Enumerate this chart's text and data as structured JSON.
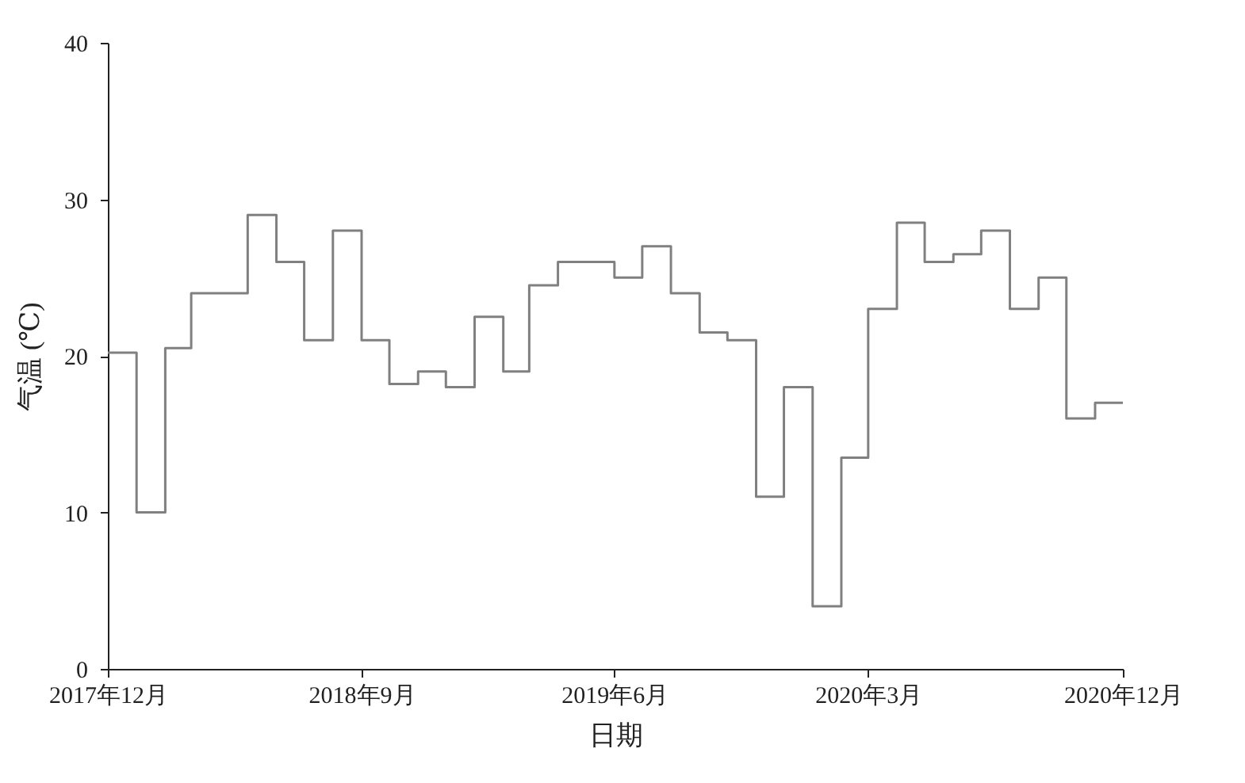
{
  "chart_data": {
    "type": "step",
    "xlabel": "日期",
    "ylabel": "气温 (℃)",
    "x": [
      "2017-12",
      "2018-01",
      "2018-02",
      "2018-03",
      "2018-04",
      "2018-05",
      "2018-06",
      "2018-07",
      "2018-08",
      "2018-09",
      "2018-10",
      "2018-11",
      "2018-12",
      "2019-01",
      "2019-02",
      "2019-03",
      "2019-04",
      "2019-05",
      "2019-06",
      "2019-07",
      "2019-08",
      "2019-09",
      "2019-10",
      "2019-11",
      "2019-12",
      "2020-01",
      "2020-02",
      "2020-03",
      "2020-04",
      "2020-05",
      "2020-06",
      "2020-07",
      "2020-08",
      "2020-09",
      "2020-10",
      "2020-11",
      "2020-12"
    ],
    "series": [
      {
        "color": "#808080",
        "values": [
          20.2,
          10,
          20.5,
          24,
          24,
          29,
          26,
          21,
          28,
          21,
          18.2,
          19,
          18,
          22.5,
          19,
          24.5,
          26,
          26,
          25,
          27,
          24,
          21.5,
          21,
          11,
          18,
          4,
          13.5,
          23,
          28.5,
          26,
          26.5,
          28,
          23,
          25,
          16,
          17,
          17
        ]
      }
    ],
    "xlim": [
      "2017-12",
      "2020-12"
    ],
    "xticks": [
      {
        "value": "2017-12",
        "label": "2017年12月"
      },
      {
        "value": "2018-09",
        "label": "2018年9月"
      },
      {
        "value": "2019-06",
        "label": "2019年6月"
      },
      {
        "value": "2020-03",
        "label": "2020年3月"
      },
      {
        "value": "2020-12",
        "label": "2020年12月"
      }
    ],
    "ylim": [
      0,
      40
    ],
    "yticks": [
      0,
      10,
      20,
      30,
      40
    ],
    "grid": false,
    "marker": "none",
    "line_style": "solid"
  }
}
